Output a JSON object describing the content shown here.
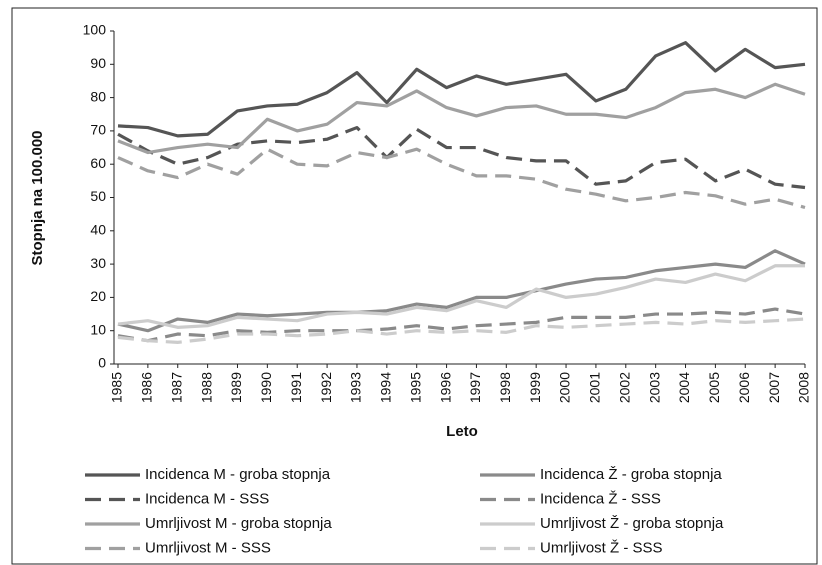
{
  "chart_data": {
    "type": "line",
    "x_label": "Leto",
    "y_label": "Stopnja na 100.000",
    "categories": [
      "1985",
      "1986",
      "1987",
      "1988",
      "1989",
      "1990",
      "1991",
      "1992",
      "1993",
      "1994",
      "1995",
      "1996",
      "1997",
      "1998",
      "1999",
      "2000",
      "2001",
      "2002",
      "2003",
      "2004",
      "2005",
      "2006",
      "2007",
      "2008"
    ],
    "ylim": [
      0,
      100
    ],
    "yticks": [
      0,
      10,
      20,
      30,
      40,
      50,
      60,
      70,
      80,
      90,
      100
    ],
    "grid": false,
    "series": [
      {
        "name": "Incidenca M - groba stopnja",
        "color": "#555555",
        "dashed": false,
        "values": [
          71.5,
          71,
          68.5,
          69,
          76,
          77.5,
          78,
          81.5,
          87.5,
          78.5,
          88.5,
          83,
          86.5,
          84,
          85.5,
          87,
          79,
          82.5,
          92.5,
          96.5,
          88,
          94.5,
          89,
          90
        ]
      },
      {
        "name": "Incidenca Ž - groba stopnja",
        "color": "#8a8a8a",
        "dashed": false,
        "values": [
          12,
          10,
          13.5,
          12.5,
          15,
          14.5,
          15,
          15.5,
          15.5,
          16,
          18,
          17,
          20,
          20,
          22,
          24,
          25.5,
          26,
          28,
          29,
          30,
          29,
          34,
          30
        ]
      },
      {
        "name": "Incidenca M - SSS",
        "color": "#555555",
        "dashed": true,
        "values": [
          69,
          64,
          60,
          62,
          66,
          67,
          66.5,
          67.5,
          71,
          62,
          70.5,
          65,
          65,
          62,
          61,
          61,
          54,
          55,
          60.5,
          61.5,
          55,
          58.5,
          54,
          53
        ]
      },
      {
        "name": "Incidenca Ž - SSS",
        "color": "#8a8a8a",
        "dashed": true,
        "values": [
          8.5,
          7,
          9,
          8.5,
          10,
          9.5,
          10,
          10,
          10,
          10.5,
          11.5,
          10.5,
          11.5,
          12,
          12.5,
          14,
          14,
          14,
          15,
          15,
          15.5,
          15,
          16.5,
          15
        ]
      },
      {
        "name": "Umrljivost M - groba stopnja",
        "color": "#a0a0a0",
        "dashed": false,
        "values": [
          67,
          63.5,
          65,
          66,
          65,
          73.5,
          70,
          72,
          78.5,
          77.5,
          82,
          77,
          74.5,
          77,
          77.5,
          75,
          75,
          74,
          77,
          81.5,
          82.5,
          80,
          84,
          81
        ]
      },
      {
        "name": "Umrljivost Ž - groba stopnja",
        "color": "#cccccc",
        "dashed": false,
        "values": [
          12,
          13,
          11,
          11.5,
          14,
          13.5,
          13,
          15,
          15.5,
          15,
          17,
          16,
          19,
          17,
          22.5,
          20,
          21,
          23,
          25.5,
          24.5,
          27,
          25,
          29.5,
          29.5
        ]
      },
      {
        "name": "Umrljivost M - SSS",
        "color": "#a0a0a0",
        "dashed": true,
        "values": [
          62,
          58,
          56,
          60,
          57,
          64.5,
          60,
          59.5,
          63.5,
          62,
          64.5,
          60,
          56.5,
          56.5,
          55.5,
          52.5,
          51,
          49,
          50,
          51.5,
          50.5,
          48,
          49.5,
          47
        ]
      },
      {
        "name": "Umrljivost Ž - SSS",
        "color": "#cccccc",
        "dashed": true,
        "values": [
          8,
          7,
          6.5,
          7.5,
          9,
          9,
          8.5,
          9,
          10,
          9,
          10,
          9.5,
          10,
          9.5,
          11.5,
          11,
          11.5,
          12,
          12.5,
          12,
          13,
          12.5,
          13,
          13.5
        ]
      }
    ]
  }
}
